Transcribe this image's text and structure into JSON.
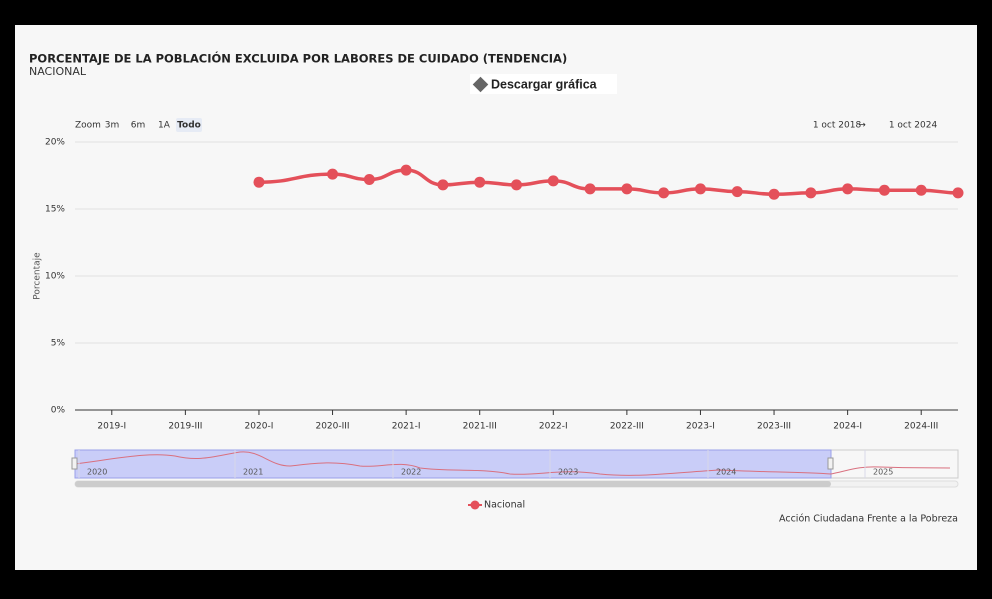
{
  "chart_data": {
    "type": "line",
    "title": "PORCENTAJE DE LA POBLACIÓN EXCLUIDA POR LABORES DE CUIDADO (TENDENCIA)",
    "subtitle": "NACIONAL",
    "download_button": "Descargar gráfica",
    "zoom_label": "Zoom",
    "zoom_buttons": [
      "3m",
      "6m",
      "1A",
      "Todo"
    ],
    "range_from": "1 oct 2018",
    "range_arrow": "→",
    "range_to": "1 oct 2024",
    "y_label": "Porcentaje",
    "credits": "Acción Ciudadana Frente a la Pobreza",
    "navigator_labels": [
      "2020",
      "2021",
      "2022",
      "2023",
      "2024",
      "2025"
    ],
    "categories": [
      null,
      "2019-I",
      null,
      "2019-III",
      null,
      "2020-I",
      null,
      "2020-III",
      null,
      "2021-I",
      null,
      "2021-III",
      null,
      "2022-I",
      null,
      "2022-III",
      null,
      "2023-I",
      null,
      "2023-III",
      null,
      "2024-I",
      null,
      "2024-III",
      null
    ],
    "series": [
      {
        "name": "Nacional",
        "color": "#e4505a",
        "values": [
          null,
          null,
          null,
          null,
          null,
          17.0,
          null,
          17.6,
          17.2,
          17.9,
          16.8,
          17.0,
          16.8,
          17.1,
          16.5,
          16.5,
          16.2,
          16.5,
          16.3,
          16.1,
          16.2,
          16.5,
          16.4,
          16.4,
          16.2
        ]
      }
    ],
    "connect_nulls": true,
    "ylim": [
      0,
      20
    ],
    "yticks": [
      {
        "value": 0,
        "label": "0%"
      },
      {
        "value": 5,
        "label": "5%"
      },
      {
        "value": 10,
        "label": "10%"
      },
      {
        "value": 15,
        "label": "15%"
      },
      {
        "value": 20,
        "label": "20%"
      }
    ],
    "grid": true
  }
}
